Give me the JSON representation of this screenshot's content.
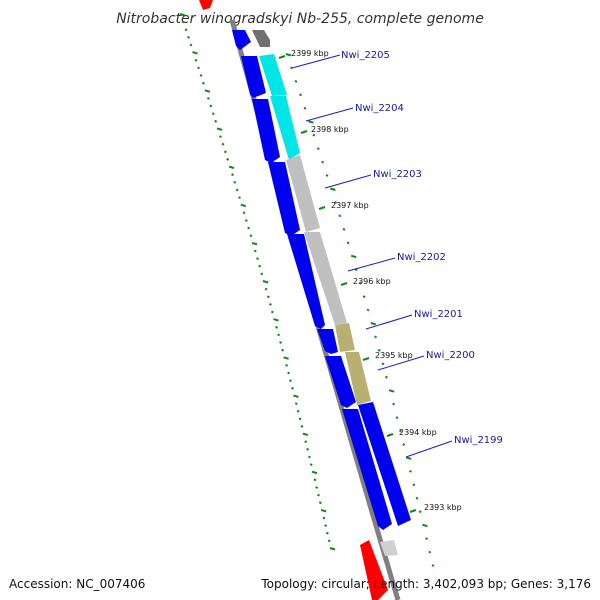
{
  "title": "Nitrobacter winogradskyi Nb-255, complete genome",
  "footer": {
    "accession": "Accession: NC_007406",
    "summary": "Topology: circular; Length: 3,402,093 bp; Genes: 3,176"
  },
  "ticks": [
    {
      "label": "2399 kbp"
    },
    {
      "label": "2398 kbp"
    },
    {
      "label": "2397 kbp"
    },
    {
      "label": "2396 kbp"
    },
    {
      "label": "2395 kbp"
    },
    {
      "label": "2394 kbp"
    },
    {
      "label": "2393 kbp"
    }
  ],
  "genes": [
    {
      "name": "Nwi_2205",
      "color": "#00e5e5"
    },
    {
      "name": "Nwi_2204",
      "color": "#00e5e5"
    },
    {
      "name": "Nwi_2203",
      "color": "#c0c0c0"
    },
    {
      "name": "Nwi_2202",
      "color": "#c0c0c0"
    },
    {
      "name": "Nwi_2201",
      "color": "#b8b070"
    },
    {
      "name": "Nwi_2200",
      "color": "#b8b070"
    },
    {
      "name": "Nwi_2199",
      "color": "#0000f0"
    }
  ],
  "colors": {
    "cds": "#0000f0",
    "backbone": "#808080",
    "ticks": "#118811",
    "rna": "#ff0000",
    "label_line": "#1a1ad0"
  }
}
